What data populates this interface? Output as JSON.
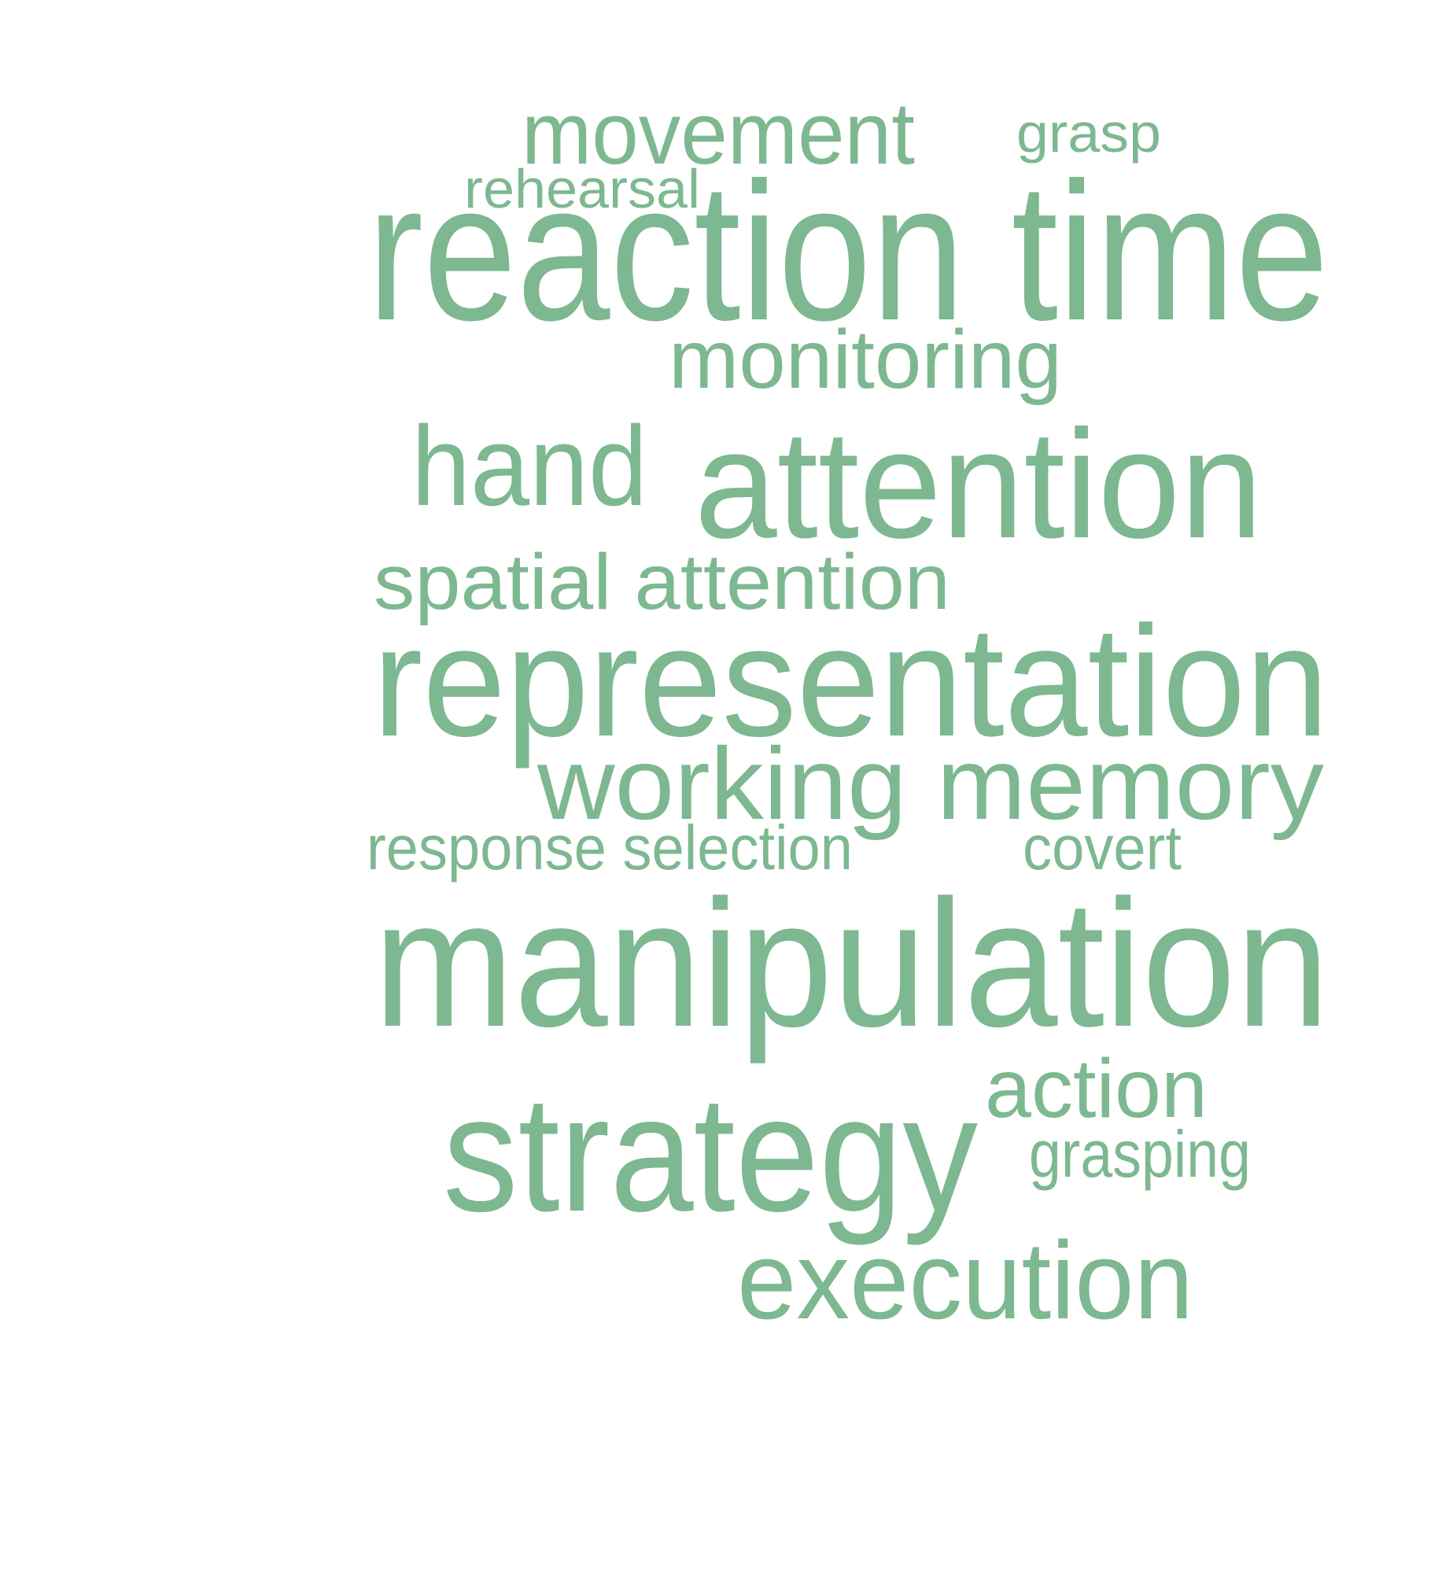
{
  "cloud": {
    "color": "#7db890",
    "words": [
      {
        "id": "movement",
        "text": "movement"
      },
      {
        "id": "grasp",
        "text": "grasp"
      },
      {
        "id": "rehearsal",
        "text": "rehearsal"
      },
      {
        "id": "reaction-time",
        "text": "reaction time"
      },
      {
        "id": "monitoring",
        "text": "monitoring"
      },
      {
        "id": "hand",
        "text": "hand"
      },
      {
        "id": "attention",
        "text": "attention"
      },
      {
        "id": "spatial-attention",
        "text": "spatial attention"
      },
      {
        "id": "representation",
        "text": "representation"
      },
      {
        "id": "working-memory",
        "text": "working memory"
      },
      {
        "id": "response-selection",
        "text": "response selection"
      },
      {
        "id": "covert",
        "text": "covert"
      },
      {
        "id": "manipulation",
        "text": "manipulation"
      },
      {
        "id": "action",
        "text": "action"
      },
      {
        "id": "strategy",
        "text": "strategy"
      },
      {
        "id": "grasping",
        "text": "grasping"
      },
      {
        "id": "execution",
        "text": "execution"
      }
    ]
  }
}
